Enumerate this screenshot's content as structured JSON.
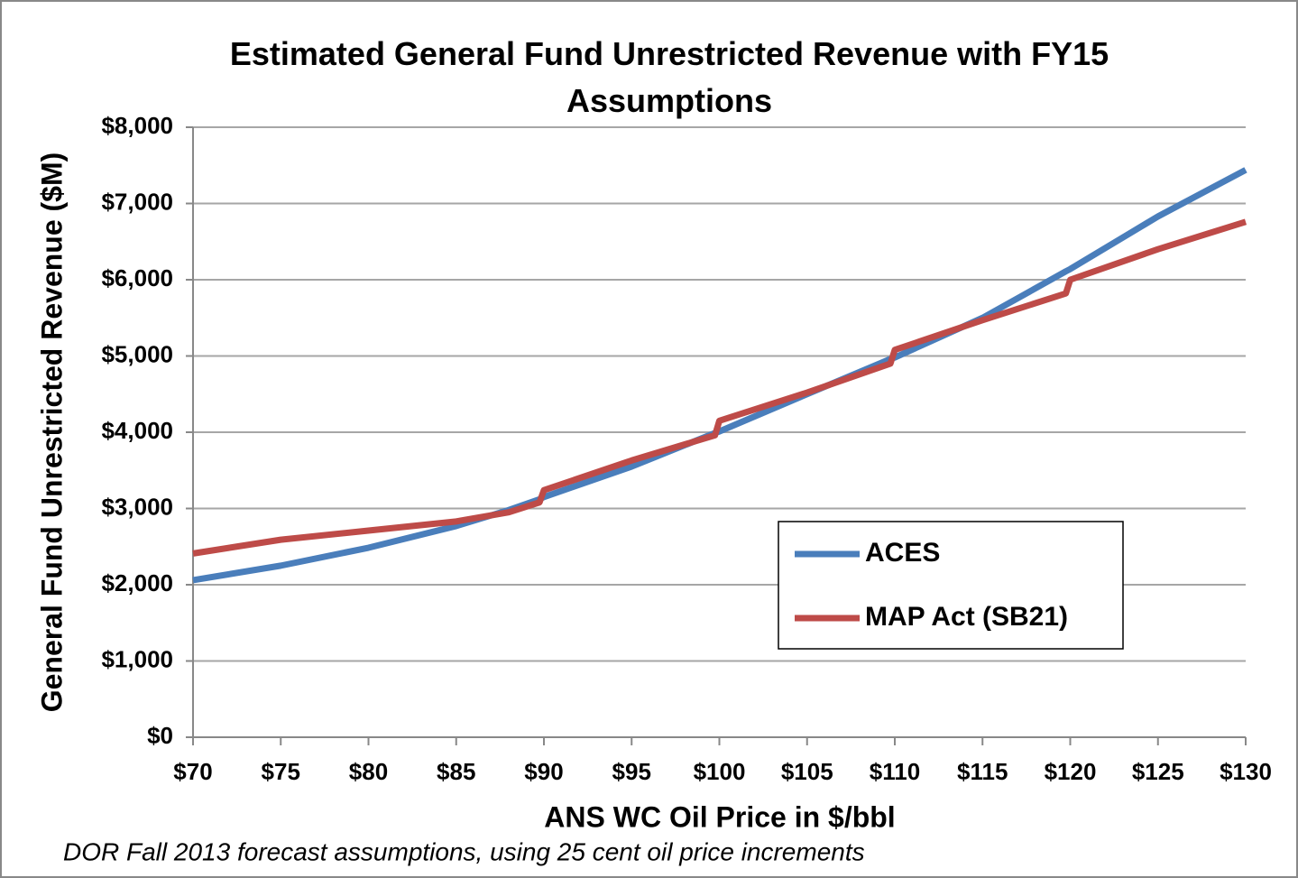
{
  "chart_data": {
    "type": "line",
    "title": "Estimated General Fund Unrestricted Revenue with FY15 Assumptions",
    "x_label": "ANS WC Oil Price in $/bbl",
    "y_label": "General Fund Unrestricted Revenue ($M)",
    "note": "DOR Fall 2013 forecast assumptions, using 25 cent oil price increments",
    "x": [
      70,
      75,
      80,
      85,
      88,
      89.75,
      90,
      95,
      99.75,
      100,
      105,
      109.75,
      110,
      115,
      119.75,
      120,
      125,
      130
    ],
    "series": [
      {
        "name": "ACES",
        "color": "#4a7ebb",
        "values": [
          2060,
          2250,
          2485,
          2770,
          2980,
          3120,
          3150,
          3550,
          3990,
          4010,
          4500,
          4960,
          4980,
          5500,
          6110,
          6140,
          6830,
          7440
        ]
      },
      {
        "name": "MAP Act (SB21)",
        "color": "#be4b48",
        "values": [
          2410,
          2590,
          2710,
          2830,
          2950,
          3080,
          3240,
          3630,
          3960,
          4150,
          4520,
          4900,
          5080,
          5470,
          5820,
          6000,
          6400,
          6760
        ]
      }
    ],
    "xlim": [
      70,
      130
    ],
    "xticks": [
      {
        "value": 70,
        "label": "$70"
      },
      {
        "value": 75,
        "label": "$75"
      },
      {
        "value": 80,
        "label": "$80"
      },
      {
        "value": 85,
        "label": "$85"
      },
      {
        "value": 90,
        "label": "$90"
      },
      {
        "value": 95,
        "label": "$95"
      },
      {
        "value": 100,
        "label": "$100"
      },
      {
        "value": 105,
        "label": "$105"
      },
      {
        "value": 110,
        "label": "$110"
      },
      {
        "value": 115,
        "label": "$115"
      },
      {
        "value": 120,
        "label": "$120"
      },
      {
        "value": 125,
        "label": "$125"
      },
      {
        "value": 130,
        "label": "$130"
      }
    ],
    "ylim": [
      0,
      8000
    ],
    "yticks": [
      {
        "value": 0,
        "label": "$0"
      },
      {
        "value": 1000,
        "label": "$1,000"
      },
      {
        "value": 2000,
        "label": "$2,000"
      },
      {
        "value": 3000,
        "label": "$3,000"
      },
      {
        "value": 4000,
        "label": "$4,000"
      },
      {
        "value": 5000,
        "label": "$5,000"
      },
      {
        "value": 6000,
        "label": "$6,000"
      },
      {
        "value": 7000,
        "label": "$7,000"
      },
      {
        "value": 8000,
        "label": "$8,000"
      }
    ],
    "grid": true,
    "legend": "lower right"
  }
}
